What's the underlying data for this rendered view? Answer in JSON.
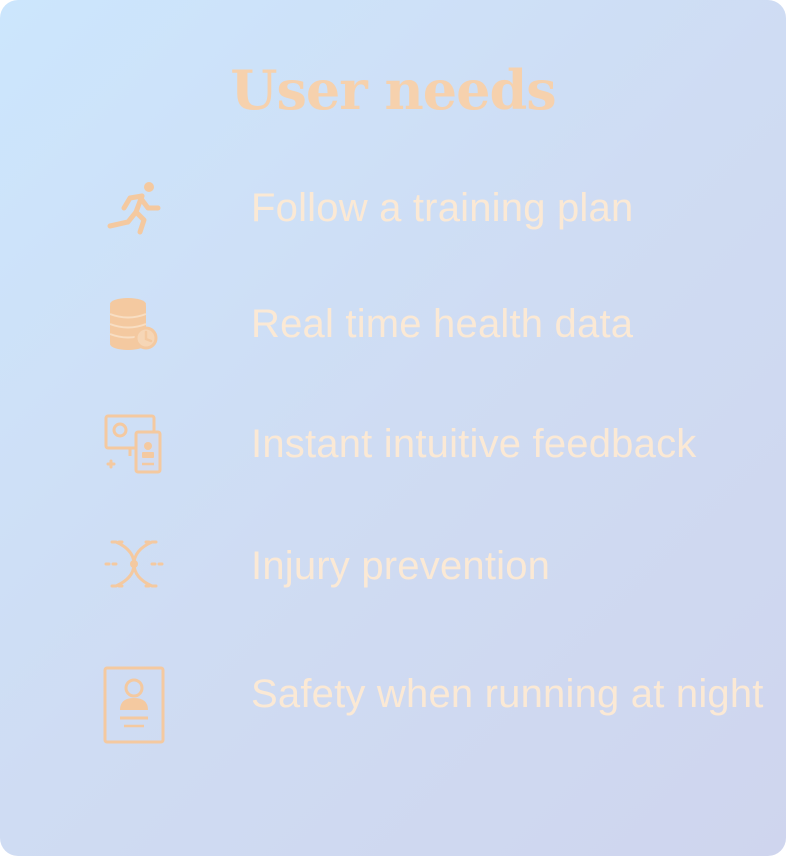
{
  "title": "User needs",
  "colors": {
    "title": "#f6d1ad",
    "label": "#fbe9d5",
    "icon": "#f4c9a0",
    "gradient_start": "#cce6fd",
    "gradient_end": "#cfd5ee"
  },
  "needs": [
    {
      "icon": "runner-icon",
      "label": "Follow a training plan"
    },
    {
      "icon": "database-clock-icon",
      "label": "Real time health data"
    },
    {
      "icon": "monitor-feedback-icon",
      "label": "Instant intuitive feedback"
    },
    {
      "icon": "dna-helix-icon",
      "label": "Injury prevention"
    },
    {
      "icon": "id-badge-icon",
      "label": "Safety when running at night"
    }
  ]
}
